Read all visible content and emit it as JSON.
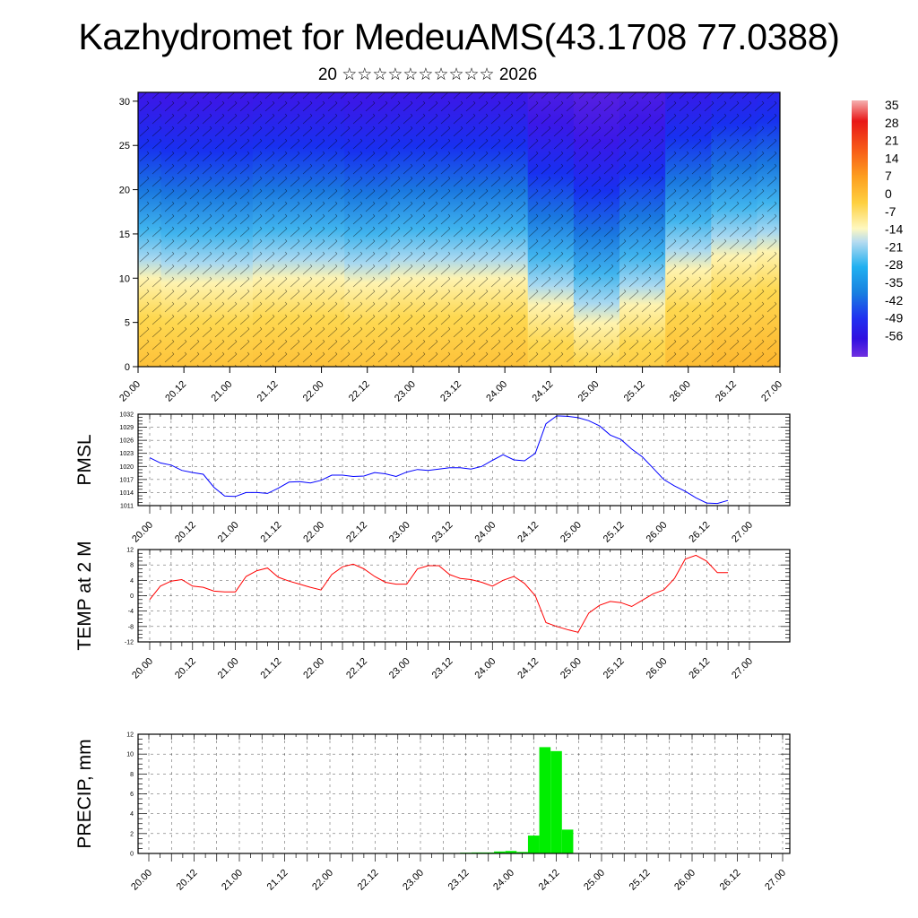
{
  "header": {
    "title": "Kazhydromet for MedeuAMS(43.1708 77.0388)",
    "subtitle": "20 ☆☆☆☆☆☆☆☆☆☆ 2026"
  },
  "chart_data": [
    {
      "type": "heatmap",
      "name": "temperature-wind-cross-section",
      "xticks": [
        "20.00",
        "20.12",
        "21.00",
        "21.12",
        "22.00",
        "22.12",
        "23.00",
        "23.12",
        "24.00",
        "24.12",
        "25.00",
        "25.12",
        "26.00",
        "26.12",
        "27.00"
      ],
      "xlim": [
        0,
        14
      ],
      "yticks": [
        "0",
        "5",
        "10",
        "15",
        "20",
        "25",
        "30"
      ],
      "ylim": [
        0,
        31
      ],
      "colorbar": {
        "labels": [
          "35",
          "28",
          "21",
          "14",
          "7",
          "0",
          "-7",
          "-14",
          "-21",
          "-28",
          "-35",
          "-42",
          "-49",
          "-56"
        ],
        "colors": [
          "#f5b0b0",
          "#e01010",
          "#f03018",
          "#f86018",
          "#fda020",
          "#fed040",
          "#fef8c0",
          "#b8dcf0",
          "#20b0f0",
          "#1880e0",
          "#2040f0",
          "#2010e8",
          "#5010e8",
          "#7030e0"
        ]
      },
      "freezing_level_approx": [
        12,
        11.5,
        11.5,
        12,
        12,
        11.5,
        12,
        12,
        12,
        9,
        7,
        9,
        13,
        14.5,
        15
      ]
    },
    {
      "type": "line",
      "name": "pmsl",
      "ylabel": "PMSL",
      "color": "#0000ff",
      "ylim": [
        1011,
        1032
      ],
      "yticks": [
        "1011",
        "1014",
        "1017",
        "1020",
        "1023",
        "1026",
        "1029",
        "1032"
      ],
      "xticks": [
        "20.00",
        "20.12",
        "21.00",
        "21.12",
        "22.00",
        "22.12",
        "23.00",
        "23.12",
        "24.00",
        "24.12",
        "25.00",
        "25.12",
        "26.00",
        "26.12",
        "27.00"
      ],
      "x": [
        0,
        0.25,
        0.5,
        0.75,
        1,
        1.25,
        1.5,
        1.75,
        2,
        2.25,
        2.5,
        2.75,
        3,
        3.25,
        3.5,
        3.75,
        4,
        4.25,
        4.5,
        4.75,
        5,
        5.25,
        5.5,
        5.75,
        6,
        6.25,
        6.5,
        6.75,
        7,
        7.25,
        7.5,
        7.75,
        8,
        8.25,
        8.5,
        8.75,
        9,
        9.25,
        9.5,
        9.75,
        10,
        10.25,
        10.5,
        10.75,
        11,
        11.25,
        11.5,
        11.75,
        12,
        12.25,
        12.5,
        12.75,
        13,
        13.25,
        13.5
      ],
      "values": [
        1022,
        1020.8,
        1020.3,
        1019.1,
        1018.6,
        1018.2,
        1015.2,
        1013.2,
        1013.1,
        1014,
        1014,
        1013.8,
        1015,
        1016.4,
        1016.5,
        1016.2,
        1016.8,
        1018,
        1018,
        1017.7,
        1017.8,
        1018.6,
        1018.3,
        1017.7,
        1018.7,
        1019.3,
        1019.1,
        1019.4,
        1019.7,
        1019.7,
        1019.4,
        1020,
        1021.4,
        1022.7,
        1021.5,
        1021.3,
        1023,
        1029.8,
        1031.6,
        1031.5,
        1031.2,
        1030.5,
        1029.3,
        1027.2,
        1026.2,
        1024,
        1022.2,
        1019.6,
        1017,
        1015.5,
        1014.3,
        1012.8,
        1011.6,
        1011.5,
        1012.2
      ]
    },
    {
      "type": "line",
      "name": "temp-2m",
      "ylabel": "TEMP at 2 M",
      "color": "#ff0000",
      "ylim": [
        -12,
        12
      ],
      "yticks": [
        "-12",
        "-8",
        "-4",
        "0",
        "4",
        "8",
        "12"
      ],
      "xticks": [
        "20.00",
        "20.12",
        "21.00",
        "21.12",
        "22.00",
        "22.12",
        "23.00",
        "23.12",
        "24.00",
        "24.12",
        "25.00",
        "25.12",
        "26.00",
        "26.12",
        "27.00"
      ],
      "x": [
        0,
        0.25,
        0.5,
        0.75,
        1,
        1.25,
        1.5,
        1.75,
        2,
        2.25,
        2.5,
        2.75,
        3,
        3.25,
        3.5,
        3.75,
        4,
        4.25,
        4.5,
        4.75,
        5,
        5.25,
        5.5,
        5.75,
        6,
        6.25,
        6.5,
        6.75,
        7,
        7.25,
        7.5,
        7.75,
        8,
        8.25,
        8.5,
        8.75,
        9,
        9.25,
        9.5,
        9.75,
        10,
        10.25,
        10.5,
        10.75,
        11,
        11.25,
        11.5,
        11.75,
        12,
        12.25,
        12.5,
        12.75,
        13,
        13.25,
        13.5
      ],
      "values": [
        -1,
        2.5,
        3.8,
        4.2,
        2.5,
        2.2,
        1.2,
        1,
        1,
        5,
        6.5,
        7.2,
        4.8,
        3.8,
        3,
        2.2,
        1.5,
        5.5,
        7.5,
        8.2,
        7,
        5,
        3.5,
        3,
        3,
        7,
        7.8,
        7.8,
        5.5,
        4.5,
        4.2,
        3.5,
        2.5,
        4,
        5,
        3.2,
        0,
        -7,
        -8,
        -8.8,
        -9.5,
        -4.5,
        -2.5,
        -1.5,
        -1.8,
        -2.8,
        -1.2,
        0.5,
        1.5,
        4.5,
        9.5,
        10.5,
        9,
        6,
        6
      ]
    },
    {
      "type": "bar",
      "name": "precip",
      "ylabel": "PRECIP, mm",
      "color": "#00ee00",
      "ylim": [
        0,
        12
      ],
      "yticks": [
        "0",
        "2",
        "4",
        "6",
        "8",
        "10",
        "12"
      ],
      "xticks": [
        "20.00",
        "20.12",
        "21.00",
        "21.12",
        "22.00",
        "22.12",
        "23.00",
        "23.12",
        "24.00",
        "24.12",
        "25.00",
        "25.12",
        "26.00",
        "26.12",
        "27.00"
      ],
      "x": [
        6.5,
        6.75,
        7,
        7.25,
        7.5,
        7.75,
        8,
        8.25,
        8.5,
        8.75,
        9,
        9.25
      ],
      "values": [
        0.05,
        0.05,
        0.08,
        0.1,
        0.1,
        0.2,
        0.25,
        0.15,
        1.8,
        10.7,
        10.3,
        2.4
      ]
    }
  ]
}
